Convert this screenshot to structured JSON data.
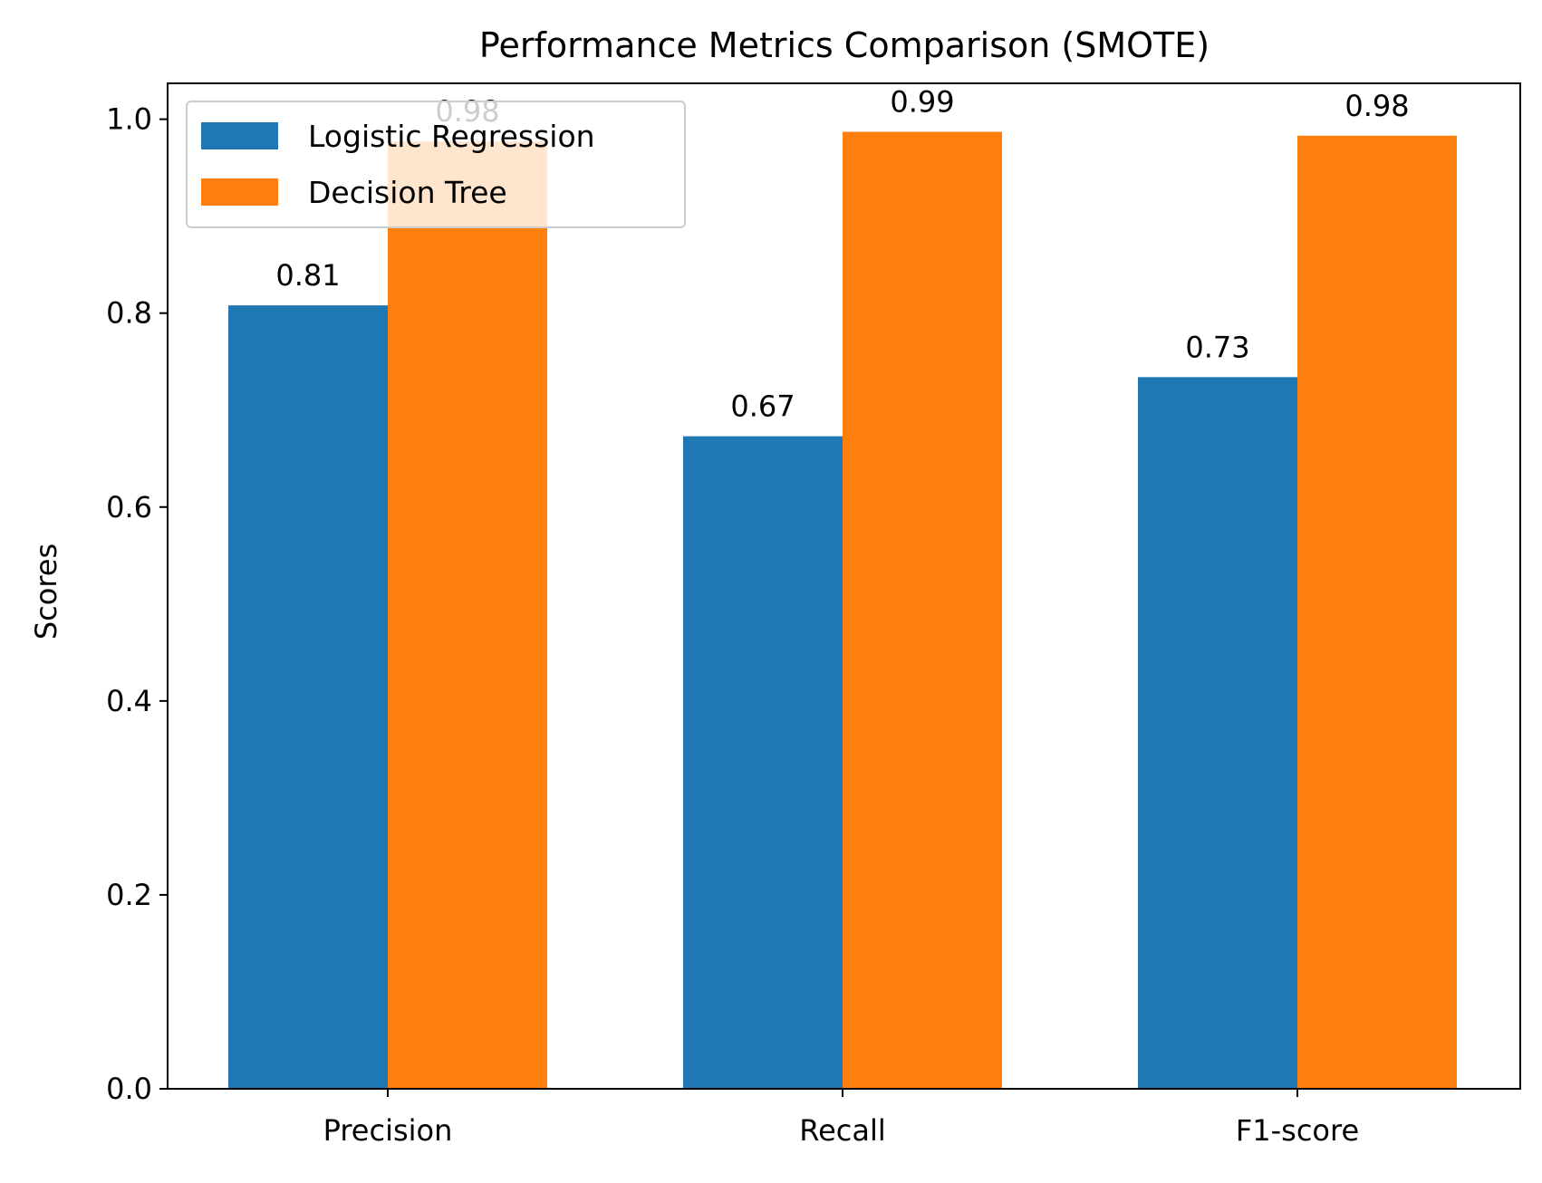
{
  "chart_data": {
    "type": "bar",
    "title": "Performance Metrics Comparison (SMOTE)",
    "xlabel": "",
    "ylabel": "Scores",
    "categories": [
      "Precision",
      "Recall",
      "F1-score"
    ],
    "series": [
      {
        "name": "Logistic Regression",
        "color": "#1f77b4",
        "values": [
          0.808,
          0.673,
          0.734
        ],
        "labels": [
          "0.81",
          "0.67",
          "0.73"
        ]
      },
      {
        "name": "Decision Tree",
        "color": "#ff7f0e",
        "values": [
          0.977,
          0.987,
          0.983
        ],
        "labels": [
          "0.98",
          "0.99",
          "0.98"
        ]
      }
    ],
    "ylim": [
      0,
      1.037
    ],
    "yticks": [
      0.0,
      0.2,
      0.4,
      0.6,
      0.8,
      1.0
    ],
    "ytick_labels": [
      "0.0",
      "0.2",
      "0.4",
      "0.6",
      "0.8",
      "1.0"
    ],
    "grid": false,
    "legend_position": "top-left"
  }
}
